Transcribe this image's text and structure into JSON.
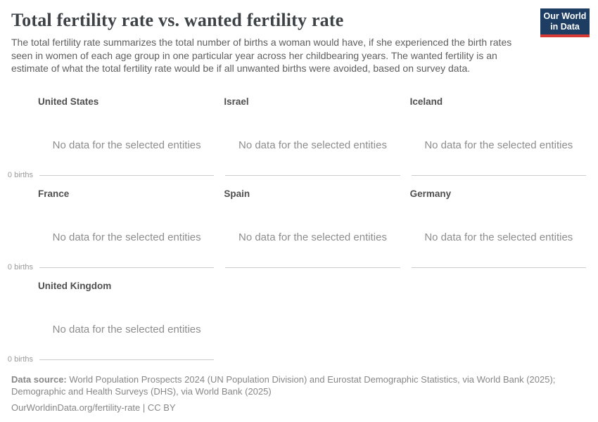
{
  "header": {
    "title": "Total fertility rate vs. wanted fertility rate",
    "subtitle": "The total fertility rate summarizes the total number of births a woman would have, if she experienced the birth rates seen in women of each age group in one particular year across her childbearing years. The wanted fertility is an estimate of what the total fertility rate would be if all unwanted births were avoided, based on survey data.",
    "logo": {
      "line1": "Our World",
      "line2": "in Data"
    }
  },
  "chart_data": {
    "type": "line",
    "title": "Total fertility rate vs. wanted fertility rate",
    "facets": [
      "United States",
      "Israel",
      "Iceland",
      "France",
      "Spain",
      "Germany",
      "United Kingdom"
    ],
    "series": [],
    "no_data_message": "No data for the selected entities",
    "y_axis_ticks": [
      "0 births"
    ],
    "ylim_shown": [
      0,
      0
    ],
    "grid": false,
    "legend": "none",
    "layout": "small multiples, 3 columns x 3 rows (7 panels); every panel empty, only the y=0 baseline axis is drawn; '0 births' tick label shown on first panel of each row"
  },
  "footer": {
    "data_source_label": "Data source:",
    "data_source_rest": " World Population Prospects 2024 (UN Population Division) and Eurostat Demographic Statistics, via World Bank (2025); Demographic and Health Surveys (DHS), via World Bank (2025)",
    "license": "OurWorldinData.org/fertility-rate | CC BY"
  },
  "colors": {
    "logo_bg": "#1d3d63",
    "logo_accent": "#d73a34",
    "title_text": "#3d4247",
    "subtitle_text": "#5e5e5e",
    "facet_title_text": "#4f4f4f",
    "no_data_text": "#8d8d8d",
    "axis_line": "#cccccc",
    "axis_tick_text": "#999999",
    "footer_text": "#878787"
  }
}
